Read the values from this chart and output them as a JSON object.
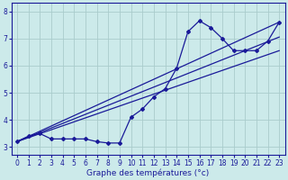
{
  "xlabel": "Graphe des températures (°c)",
  "bg_color": "#cceaea",
  "grid_color": "#aacccc",
  "line_color": "#1a1a99",
  "xlim": [
    -0.5,
    23.5
  ],
  "ylim": [
    2.7,
    8.3
  ],
  "xticks": [
    0,
    1,
    2,
    3,
    4,
    5,
    6,
    7,
    8,
    9,
    10,
    11,
    12,
    13,
    14,
    15,
    16,
    17,
    18,
    19,
    20,
    21,
    22,
    23
  ],
  "yticks": [
    3,
    4,
    5,
    6,
    7,
    8
  ],
  "curve_main_x": [
    0,
    1,
    2,
    3,
    4,
    5,
    6,
    7,
    8,
    9,
    10,
    11,
    12,
    13,
    14,
    15,
    16,
    17,
    18,
    19,
    20,
    21,
    22,
    23
  ],
  "curve_main_y": [
    3.2,
    3.4,
    3.5,
    3.3,
    3.3,
    3.3,
    3.3,
    3.2,
    3.15,
    3.15,
    4.1,
    4.4,
    4.85,
    5.15,
    5.9,
    7.25,
    7.65,
    7.4,
    7.0,
    6.55,
    6.55,
    6.55,
    6.9,
    7.6
  ],
  "line1_x": [
    0,
    23
  ],
  "line1_y": [
    3.2,
    7.6
  ],
  "line2_x": [
    0,
    23
  ],
  "line2_y": [
    3.2,
    6.55
  ],
  "line3_x": [
    0,
    23
  ],
  "line3_y": [
    3.2,
    7.05
  ],
  "marker": "D",
  "marker_size": 2.0,
  "line_width": 0.9,
  "tick_fontsize": 5.5,
  "xlabel_fontsize": 6.5
}
